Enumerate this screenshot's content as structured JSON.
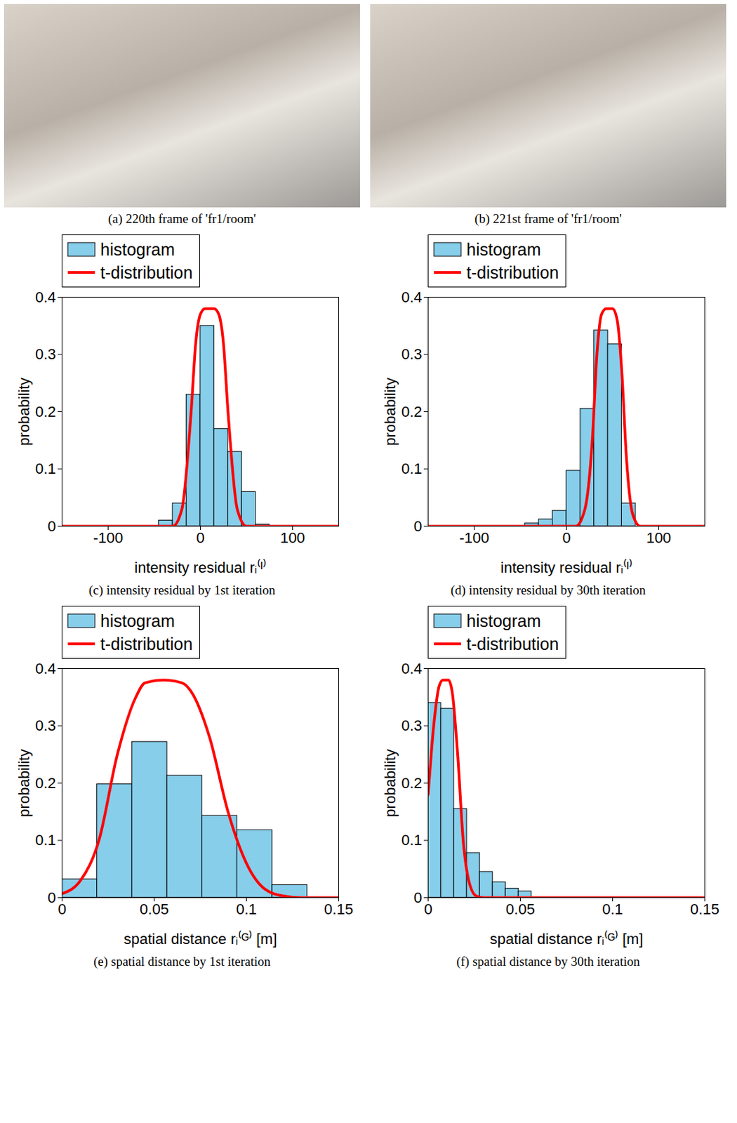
{
  "images": [
    {
      "caption": "(a) 220th frame of 'fr1/room'"
    },
    {
      "caption": "(b) 221st frame of 'fr1/room'"
    }
  ],
  "chart_data": [
    {
      "type": "histogram",
      "title": "(c) intensity residual by 1st iteration",
      "xlabel": "intensity residual rᵢ⁽ᴵ⁾",
      "ylabel": "probability",
      "legend": "top",
      "xlim": [
        -150,
        150
      ],
      "xticks": [
        -100,
        0,
        100
      ],
      "ylim": [
        0,
        0.4
      ],
      "yticks": [
        0,
        0.1,
        0.2,
        0.3,
        0.4
      ],
      "bins": [
        -45,
        -30,
        -15,
        0,
        15,
        30,
        45,
        60,
        75
      ],
      "series": [
        {
          "name": "histogram",
          "type": "bar",
          "color": "#87ceeb",
          "values": [
            0.01,
            0.04,
            0.23,
            0.35,
            0.17,
            0.13,
            0.06,
            0.003
          ]
        },
        {
          "name": "t-distribution",
          "type": "line",
          "color": "#ff0000",
          "x": [
            -150,
            -30,
            -20,
            -10,
            -5,
            0,
            5,
            15,
            20,
            25,
            30,
            40,
            50,
            150
          ],
          "values": [
            0,
            0,
            0.03,
            0.2,
            0.32,
            0.37,
            0.38,
            0.38,
            0.37,
            0.32,
            0.2,
            0.03,
            0,
            0
          ]
        }
      ]
    },
    {
      "type": "histogram",
      "title": "(d) intensity residual by 30th iteration",
      "xlabel": "intensity residual rᵢ⁽ᴵ⁾",
      "ylabel": "probability",
      "legend": "top",
      "xlim": [
        -150,
        150
      ],
      "xticks": [
        -100,
        0,
        100
      ],
      "ylim": [
        0,
        0.4
      ],
      "yticks": [
        0,
        0.1,
        0.2,
        0.3,
        0.4
      ],
      "bins": [
        -45,
        -30,
        -15,
        0,
        15,
        30,
        45,
        60,
        75
      ],
      "series": [
        {
          "name": "histogram",
          "type": "bar",
          "color": "#87ceeb",
          "values": [
            0.005,
            0.012,
            0.027,
            0.097,
            0.205,
            0.342,
            0.318,
            0.04
          ]
        },
        {
          "name": "t-distribution",
          "type": "line",
          "color": "#ff0000",
          "x": [
            -150,
            10,
            20,
            28,
            33,
            38,
            43,
            50,
            55,
            60,
            65,
            72,
            80,
            150
          ],
          "values": [
            0,
            0,
            0.03,
            0.15,
            0.3,
            0.37,
            0.38,
            0.38,
            0.36,
            0.27,
            0.12,
            0.02,
            0,
            0
          ]
        }
      ]
    },
    {
      "type": "histogram",
      "title": "(e) spatial distance by 1st iteration",
      "xlabel": "spatial distance rᵢ⁽ᴳ⁾ [m]",
      "ylabel": "probability",
      "legend": "top",
      "xlim": [
        0,
        0.15
      ],
      "xticks": [
        0,
        0.05,
        0.1,
        0.15
      ],
      "ylim": [
        0,
        0.4
      ],
      "yticks": [
        0,
        0.1,
        0.2,
        0.3,
        0.4
      ],
      "bins": [
        0,
        0.019,
        0.038,
        0.057,
        0.076,
        0.095,
        0.114,
        0.133
      ],
      "series": [
        {
          "name": "histogram",
          "type": "bar",
          "color": "#87ceeb",
          "values": [
            0.032,
            0.198,
            0.272,
            0.213,
            0.143,
            0.118,
            0.022
          ]
        },
        {
          "name": "t-distribution",
          "type": "line",
          "color": "#ff0000",
          "x": [
            0,
            0.01,
            0.02,
            0.03,
            0.04,
            0.045,
            0.055,
            0.065,
            0.07,
            0.08,
            0.09,
            0.1,
            0.11,
            0.12,
            0.13,
            0.15
          ],
          "values": [
            0.007,
            0.03,
            0.1,
            0.25,
            0.35,
            0.375,
            0.38,
            0.375,
            0.36,
            0.28,
            0.15,
            0.06,
            0.015,
            0.003,
            0,
            0
          ]
        }
      ]
    },
    {
      "type": "histogram",
      "title": "(f) spatial distance by 30th iteration",
      "xlabel": "spatial distance rᵢ⁽ᴳ⁾ [m]",
      "ylabel": "probability",
      "legend": "top",
      "xlim": [
        0,
        0.15
      ],
      "xticks": [
        0,
        0.05,
        0.1,
        0.15
      ],
      "ylim": [
        0,
        0.4
      ],
      "yticks": [
        0,
        0.1,
        0.2,
        0.3,
        0.4
      ],
      "bins": [
        0,
        0.007,
        0.014,
        0.021,
        0.028,
        0.035,
        0.042,
        0.049,
        0.056
      ],
      "series": [
        {
          "name": "histogram",
          "type": "bar",
          "color": "#87ceeb",
          "values": [
            0.34,
            0.33,
            0.155,
            0.078,
            0.045,
            0.027,
            0.016,
            0.011
          ]
        },
        {
          "name": "t-distribution",
          "type": "line",
          "color": "#ff0000",
          "x": [
            0,
            0.003,
            0.006,
            0.008,
            0.011,
            0.013,
            0.016,
            0.019,
            0.022,
            0.026,
            0.03,
            0.15
          ],
          "values": [
            0.18,
            0.3,
            0.37,
            0.38,
            0.38,
            0.36,
            0.25,
            0.1,
            0.03,
            0.003,
            0,
            0
          ]
        }
      ]
    }
  ]
}
